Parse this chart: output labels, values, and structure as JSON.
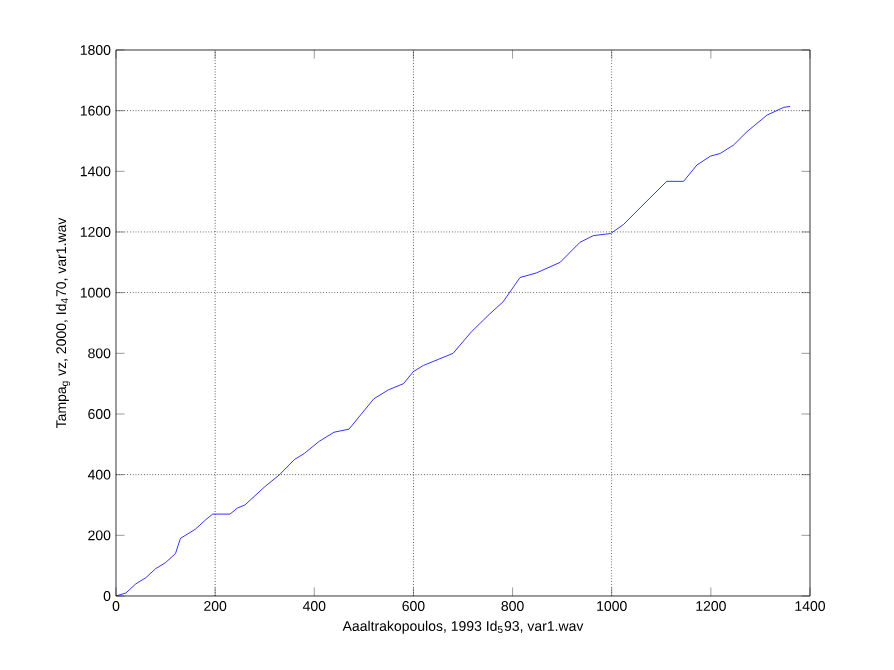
{
  "chart_data": {
    "type": "line",
    "xlabel": "Aaaltrakopoulos, 1993 Id$_{5}$93, var1.wav",
    "ylabel": "Tampa$_{g}$ vz, 2000, Id$_{4}$70, var1.wav",
    "x": [
      0,
      20,
      40,
      60,
      80,
      100,
      120,
      130,
      160,
      180,
      195,
      230,
      245,
      260,
      300,
      330,
      360,
      380,
      410,
      440,
      470,
      490,
      520,
      550,
      580,
      600,
      620,
      650,
      680,
      717,
      754,
      781,
      815,
      848,
      896,
      936,
      963,
      998,
      1024,
      1044,
      1077,
      1111,
      1145,
      1172,
      1199,
      1219,
      1246,
      1273,
      1313,
      1347,
      1360
    ],
    "series": [
      {
        "color": "#0000ff",
        "values": [
          0,
          10,
          40,
          60,
          90,
          110,
          140,
          190,
          220,
          250,
          270,
          270,
          290,
          300,
          360,
          400,
          450,
          470,
          510,
          540,
          550,
          590,
          650,
          680,
          700,
          740,
          760,
          780,
          800,
          871,
          930,
          970,
          1050,
          1065,
          1100,
          1166,
          1188,
          1195,
          1225,
          1258,
          1312,
          1367,
          1367,
          1421,
          1450,
          1459,
          1487,
          1531,
          1585,
          1611,
          1614
        ]
      }
    ],
    "line_style": "solid",
    "xlim": [
      0,
      1400
    ],
    "ylim": [
      0,
      1800
    ],
    "xticks": [
      0,
      200,
      400,
      600,
      800,
      1000,
      1200,
      1400
    ],
    "yticks": [
      0,
      200,
      400,
      600,
      800,
      1000,
      1200,
      1400,
      1600,
      1800
    ],
    "ref_lines": [
      {
        "axis": "x",
        "value": 200,
        "line_style": "dotted"
      },
      {
        "axis": "x",
        "value": 600,
        "line_style": "dotted"
      },
      {
        "axis": "x",
        "value": 1000,
        "line_style": "dotted"
      },
      {
        "axis": "y",
        "value": 400,
        "line_style": "dotted"
      },
      {
        "axis": "y",
        "value": 1000,
        "line_style": "dotted"
      },
      {
        "axis": "y",
        "value": 1200,
        "line_style": "dotted"
      },
      {
        "axis": "y",
        "value": 1600,
        "line_style": "dotted"
      }
    ]
  }
}
